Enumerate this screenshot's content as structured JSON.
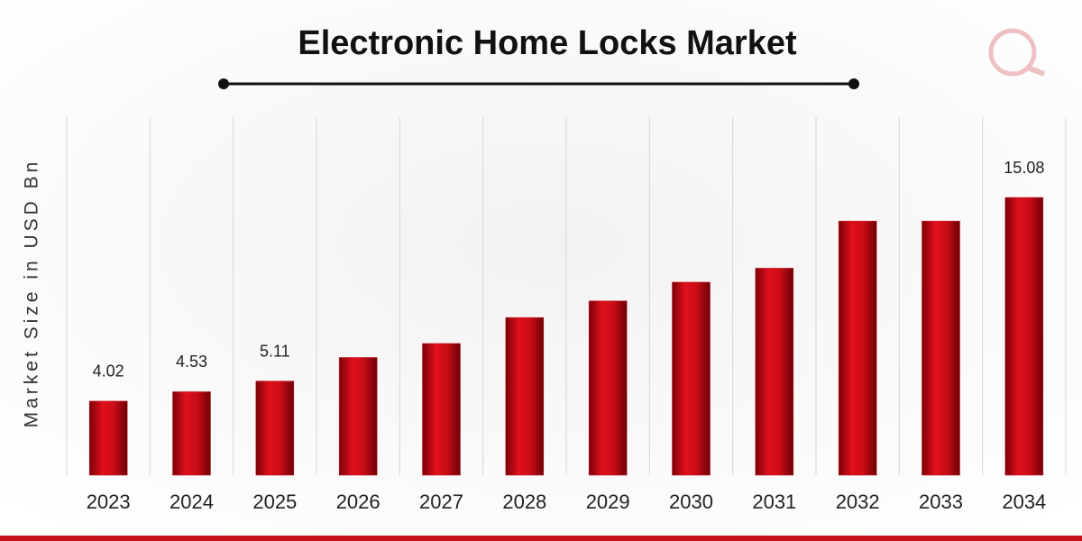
{
  "chart_data": {
    "type": "bar",
    "title": "Electronic Home Locks Market",
    "y_label": "Market Size in USD Bn",
    "categories": [
      "2023",
      "2024",
      "2025",
      "2026",
      "2027",
      "2028",
      "2029",
      "2030",
      "2031",
      "2032",
      "2033",
      "2034"
    ],
    "values": [
      4.02,
      4.53,
      5.11,
      6.39,
      7.15,
      8.56,
      9.46,
      10.48,
      11.24,
      13.8,
      13.8,
      15.08
    ],
    "value_labels": [
      "4.02",
      "4.53",
      "5.11",
      null,
      null,
      null,
      null,
      null,
      null,
      null,
      null,
      "15.08"
    ],
    "color": "#c8101a",
    "grid": true
  }
}
